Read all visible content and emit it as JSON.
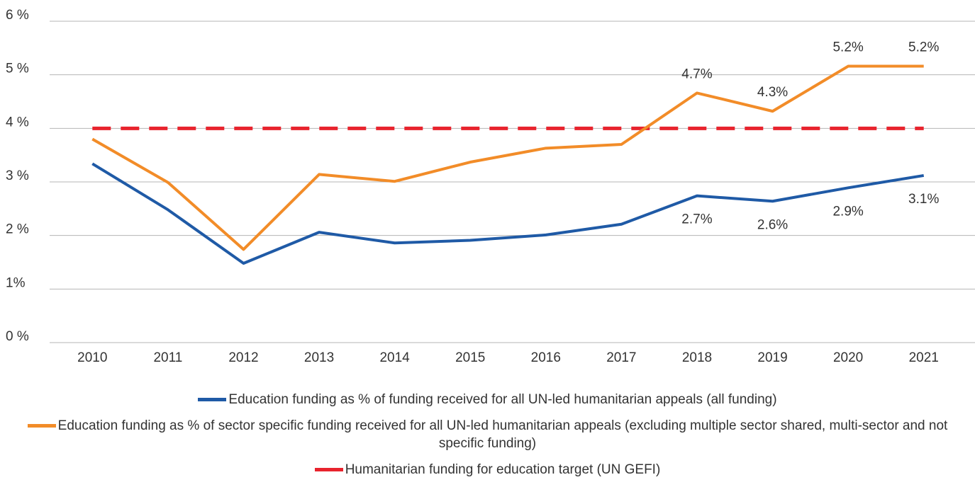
{
  "chart_data": {
    "type": "line",
    "categories": [
      "2010",
      "2011",
      "2012",
      "2013",
      "2014",
      "2015",
      "2016",
      "2017",
      "2018",
      "2019",
      "2020",
      "2021"
    ],
    "series": [
      {
        "name": "Education funding as % of funding received for all UN-led humanitarian appeals (all funding)",
        "color": "#1f5aa6",
        "values": [
          3.34,
          2.48,
          1.48,
          2.06,
          1.86,
          1.91,
          2.01,
          2.21,
          2.74,
          2.64,
          2.89,
          3.12
        ],
        "value_labels": [
          null,
          null,
          null,
          null,
          null,
          null,
          null,
          null,
          "2.7%",
          "2.6%",
          "2.9%",
          "3.1%"
        ],
        "label_position": "below"
      },
      {
        "name": "Education funding as % of sector specific funding received for all UN-led humanitarian appeals (excluding multiple sector shared, multi-sector and not specific funding)",
        "color": "#f28c28",
        "values": [
          3.8,
          2.99,
          1.74,
          3.14,
          3.01,
          3.37,
          3.63,
          3.7,
          4.66,
          4.32,
          5.16,
          5.16
        ],
        "value_labels": [
          null,
          null,
          null,
          null,
          null,
          null,
          null,
          null,
          "4.7%",
          "4.3%",
          "5.2%",
          "5.2%"
        ],
        "label_position": "above"
      },
      {
        "name": "Humanitarian funding for education target (UN GEFI)",
        "color": "#e8232d",
        "dashed": true,
        "values": [
          4,
          4,
          4,
          4,
          4,
          4,
          4,
          4,
          4,
          4,
          4,
          4
        ]
      }
    ],
    "ylim": [
      0,
      6
    ],
    "yticks": [
      {
        "value": 0,
        "label": "0 %"
      },
      {
        "value": 1,
        "label": "1%"
      },
      {
        "value": 2,
        "label": "2 %"
      },
      {
        "value": 3,
        "label": "3 %"
      },
      {
        "value": 4,
        "label": "4 %"
      },
      {
        "value": 5,
        "label": "5 %"
      },
      {
        "value": 6,
        "label": "6 %"
      }
    ],
    "grid": true,
    "legend": "bottom"
  }
}
